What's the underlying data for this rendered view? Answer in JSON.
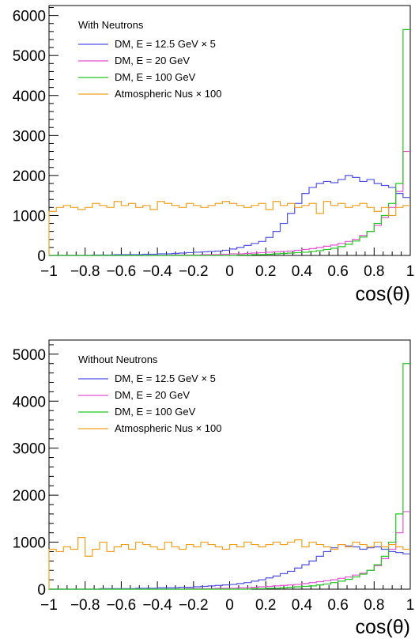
{
  "chart_data": [
    {
      "type": "histogram",
      "legend_title": "With Neutrons",
      "xlabel": "cos(θ)",
      "ylabel": "",
      "xlim": [
        -1,
        1
      ],
      "ylim": [
        0,
        6250
      ],
      "x_ticks": [
        {
          "value": -1,
          "label": "−1"
        },
        {
          "value": -0.8,
          "label": "−0.8"
        },
        {
          "value": -0.6,
          "label": "−0.6"
        },
        {
          "value": -0.4,
          "label": "−0.4"
        },
        {
          "value": -0.2,
          "label": "−0.2"
        },
        {
          "value": 0,
          "label": "0"
        },
        {
          "value": 0.2,
          "label": "0.2"
        },
        {
          "value": 0.4,
          "label": "0.4"
        },
        {
          "value": 0.6,
          "label": "0.6"
        },
        {
          "value": 0.8,
          "label": "0.8"
        },
        {
          "value": 1,
          "label": "1"
        }
      ],
      "y_ticks": [
        {
          "value": 0,
          "label": "0"
        },
        {
          "value": 1000,
          "label": "1000"
        },
        {
          "value": 2000,
          "label": "2000"
        },
        {
          "value": 3000,
          "label": "3000"
        },
        {
          "value": 4000,
          "label": "4000"
        },
        {
          "value": 5000,
          "label": "5000"
        },
        {
          "value": 6000,
          "label": "6000"
        }
      ],
      "legend_placement": "top-left",
      "bins": 50,
      "series": [
        {
          "name": "DM, E = 12.5 GeV × 5",
          "color": "#5050e6",
          "values": [
            0,
            0,
            0,
            0,
            0,
            0,
            10,
            10,
            10,
            20,
            20,
            20,
            20,
            30,
            30,
            40,
            40,
            50,
            60,
            70,
            80,
            90,
            100,
            110,
            130,
            160,
            200,
            250,
            300,
            350,
            450,
            600,
            800,
            1050,
            1300,
            1550,
            1700,
            1800,
            1850,
            1820,
            1900,
            2000,
            1950,
            1850,
            1900,
            1800,
            1750,
            1700,
            1550,
            1450
          ]
        },
        {
          "name": "DM, E = 20 GeV",
          "color": "#e650d2",
          "values": [
            0,
            0,
            0,
            0,
            0,
            0,
            0,
            0,
            0,
            0,
            0,
            0,
            0,
            0,
            0,
            0,
            0,
            10,
            10,
            10,
            10,
            20,
            20,
            20,
            30,
            40,
            40,
            50,
            60,
            70,
            80,
            90,
            100,
            110,
            130,
            150,
            170,
            200,
            230,
            260,
            300,
            350,
            400,
            500,
            600,
            750,
            950,
            1200,
            1600,
            2600
          ]
        },
        {
          "name": "DM, E = 100 GeV",
          "color": "#1ec81e",
          "values": [
            0,
            0,
            0,
            0,
            0,
            0,
            0,
            0,
            0,
            0,
            0,
            0,
            0,
            0,
            0,
            0,
            0,
            0,
            0,
            0,
            0,
            0,
            0,
            0,
            0,
            0,
            10,
            10,
            20,
            20,
            30,
            40,
            50,
            60,
            70,
            80,
            100,
            120,
            150,
            180,
            220,
            280,
            360,
            460,
            600,
            800,
            1000,
            1300,
            1800,
            5650
          ]
        },
        {
          "name": "Atmospheric Nus × 100",
          "color": "#f0a01e",
          "values": [
            1100,
            1200,
            1250,
            1200,
            1150,
            1200,
            1300,
            1250,
            1200,
            1350,
            1250,
            1300,
            1200,
            1250,
            1150,
            1350,
            1300,
            1250,
            1200,
            1300,
            1250,
            1200,
            1250,
            1300,
            1350,
            1300,
            1250,
            1200,
            1250,
            1300,
            1150,
            1350,
            1250,
            1300,
            1200,
            1250,
            1300,
            1050,
            1350,
            1250,
            1300,
            1200,
            1250,
            1300,
            1200,
            1100,
            1200,
            1000,
            1200,
            1250
          ]
        }
      ]
    },
    {
      "type": "histogram",
      "legend_title": "Without Neutrons",
      "xlabel": "cos(θ)",
      "ylabel": "",
      "xlim": [
        -1,
        1
      ],
      "ylim": [
        0,
        5300
      ],
      "x_ticks": [
        {
          "value": -1,
          "label": "−1"
        },
        {
          "value": -0.8,
          "label": "−0.8"
        },
        {
          "value": -0.6,
          "label": "−0.6"
        },
        {
          "value": -0.4,
          "label": "−0.4"
        },
        {
          "value": -0.2,
          "label": "−0.2"
        },
        {
          "value": 0,
          "label": "0"
        },
        {
          "value": 0.2,
          "label": "0.2"
        },
        {
          "value": 0.4,
          "label": "0.4"
        },
        {
          "value": 0.6,
          "label": "0.6"
        },
        {
          "value": 0.8,
          "label": "0.8"
        },
        {
          "value": 1,
          "label": "1"
        }
      ],
      "y_ticks": [
        {
          "value": 0,
          "label": "0"
        },
        {
          "value": 1000,
          "label": "1000"
        },
        {
          "value": 2000,
          "label": "2000"
        },
        {
          "value": 3000,
          "label": "3000"
        },
        {
          "value": 4000,
          "label": "4000"
        },
        {
          "value": 5000,
          "label": "5000"
        }
      ],
      "legend_placement": "top-left",
      "bins": 50,
      "series": [
        {
          "name": "DM, E = 12.5 GeV × 5",
          "color": "#5050e6",
          "values": [
            0,
            0,
            0,
            0,
            0,
            0,
            0,
            10,
            10,
            10,
            10,
            10,
            20,
            20,
            20,
            30,
            30,
            30,
            40,
            40,
            50,
            60,
            70,
            80,
            90,
            100,
            120,
            140,
            170,
            200,
            240,
            280,
            330,
            380,
            450,
            520,
            600,
            700,
            800,
            880,
            950,
            920,
            900,
            850,
            880,
            900,
            850,
            800,
            780,
            750
          ]
        },
        {
          "name": "DM, E = 20 GeV",
          "color": "#e650d2",
          "values": [
            0,
            0,
            0,
            0,
            0,
            0,
            0,
            0,
            0,
            0,
            0,
            0,
            0,
            0,
            0,
            0,
            0,
            0,
            0,
            10,
            10,
            10,
            10,
            20,
            20,
            20,
            30,
            30,
            40,
            50,
            60,
            70,
            80,
            90,
            100,
            120,
            140,
            160,
            180,
            200,
            230,
            260,
            300,
            340,
            400,
            500,
            650,
            850,
            1200,
            1650
          ]
        },
        {
          "name": "DM, E = 100 GeV",
          "color": "#1ec81e",
          "values": [
            0,
            0,
            0,
            0,
            0,
            0,
            0,
            0,
            0,
            0,
            0,
            0,
            0,
            0,
            0,
            0,
            0,
            0,
            0,
            0,
            0,
            0,
            0,
            0,
            0,
            0,
            0,
            0,
            10,
            10,
            20,
            20,
            30,
            40,
            50,
            60,
            70,
            90,
            110,
            140,
            170,
            210,
            260,
            320,
            400,
            520,
            700,
            1000,
            1600,
            4800
          ]
        },
        {
          "name": "Atmospheric Nus × 100",
          "color": "#f0a01e",
          "values": [
            850,
            800,
            900,
            850,
            1100,
            700,
            850,
            1000,
            800,
            900,
            950,
            850,
            1000,
            950,
            900,
            850,
            1000,
            900,
            850,
            950,
            900,
            1000,
            950,
            900,
            850,
            950,
            900,
            1000,
            950,
            900,
            950,
            1000,
            950,
            1000,
            1050,
            900,
            1000,
            950,
            900,
            850,
            950,
            900,
            1000,
            950,
            900,
            1000,
            900,
            950,
            900,
            850
          ]
        }
      ]
    }
  ]
}
